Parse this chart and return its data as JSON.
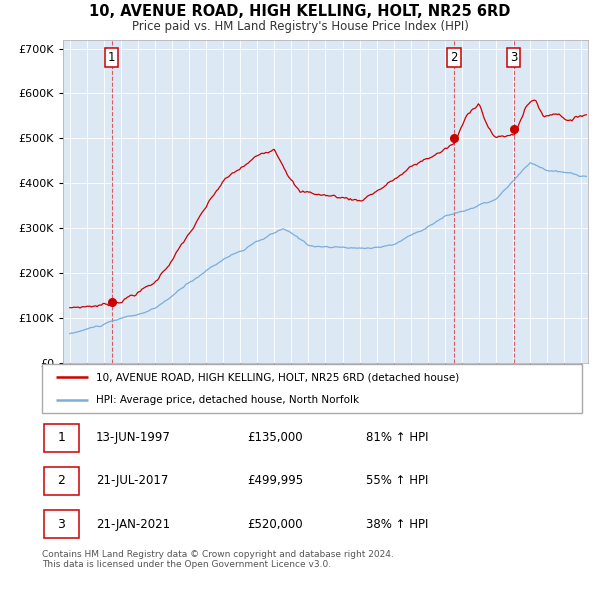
{
  "title": "10, AVENUE ROAD, HIGH KELLING, HOLT, NR25 6RD",
  "subtitle": "Price paid vs. HM Land Registry's House Price Index (HPI)",
  "bg_color": "#dce9f5",
  "legend_label_red": "10, AVENUE ROAD, HIGH KELLING, HOLT, NR25 6RD (detached house)",
  "legend_label_blue": "HPI: Average price, detached house, North Norfolk",
  "transactions": [
    {
      "label": "1",
      "date_str": "13-JUN-1997",
      "date_num": 1997.45,
      "price": 135000,
      "pct": "81% ↑ HPI"
    },
    {
      "label": "2",
      "date_str": "21-JUL-2017",
      "date_num": 2017.55,
      "price": 499995,
      "pct": "55% ↑ HPI"
    },
    {
      "label": "3",
      "date_str": "21-JAN-2021",
      "date_num": 2021.05,
      "price": 520000,
      "pct": "38% ↑ HPI"
    }
  ],
  "footer": "Contains HM Land Registry data © Crown copyright and database right 2024.\nThis data is licensed under the Open Government Licence v3.0.",
  "ylim": [
    0,
    720000
  ],
  "xlim": [
    1994.6,
    2025.4
  ],
  "red_color": "#cc0000",
  "blue_color": "#7aaddb"
}
